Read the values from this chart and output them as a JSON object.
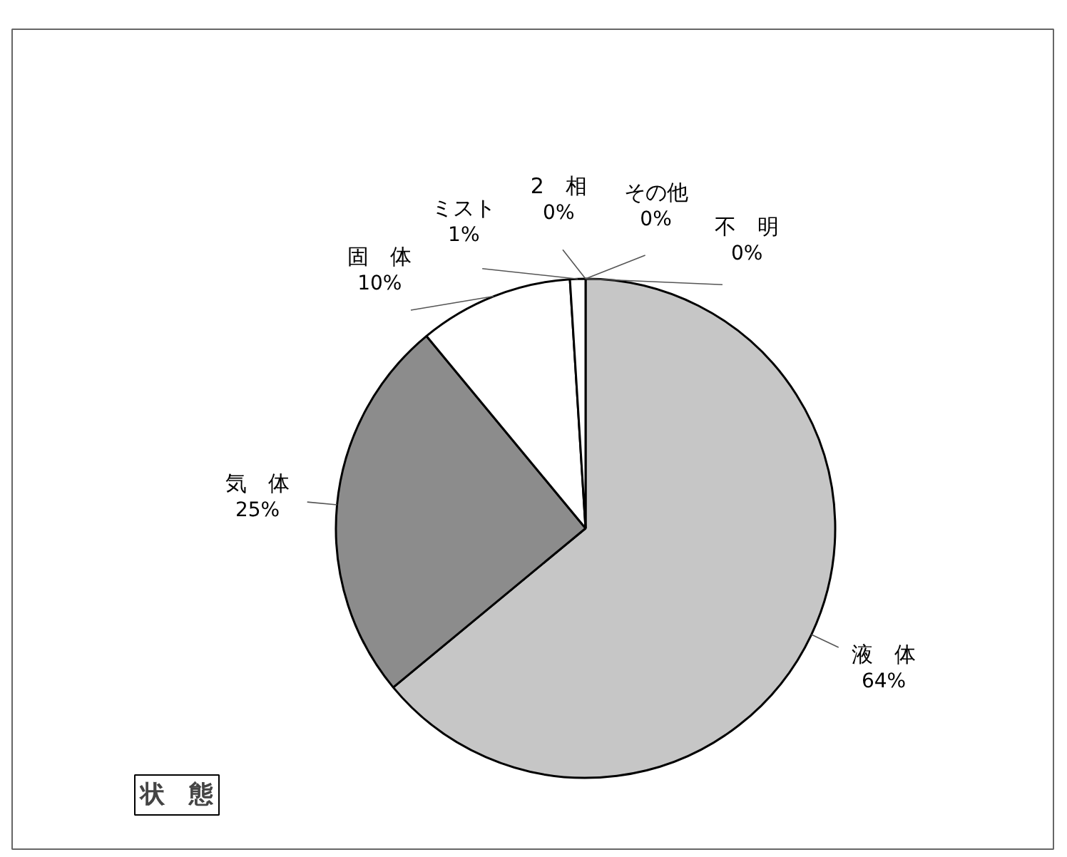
{
  "chart_data": {
    "type": "pie",
    "title": "状　態",
    "categories": [
      "液　体",
      "気　体",
      "固　体",
      "ミスト",
      "2　相",
      "その他",
      "不　明"
    ],
    "values": [
      64,
      25,
      10,
      1,
      0,
      0,
      0
    ],
    "colors": [
      "#c6c6c6",
      "#8c8c8c",
      "#ffffff",
      "#ffffff",
      "#ffffff",
      "#ffffff",
      "#ffffff"
    ],
    "value_labels": [
      "64%",
      "25%",
      "10%",
      "1%",
      "0%",
      "0%",
      "0%"
    ]
  }
}
